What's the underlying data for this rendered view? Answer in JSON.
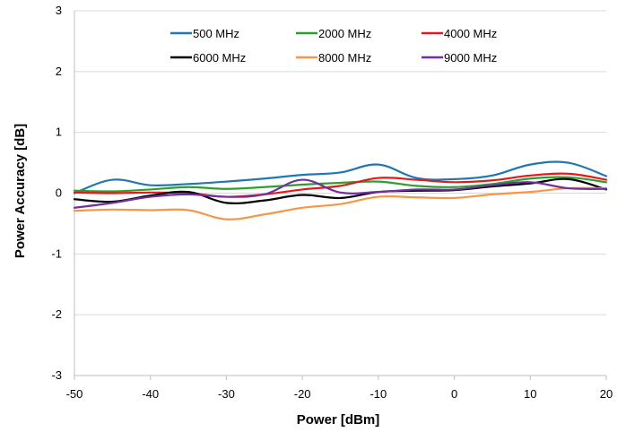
{
  "chart_data": {
    "type": "line",
    "title": "",
    "xlabel": "Power [dBm]",
    "ylabel": "Power Accuracy [dB]",
    "xlim": [
      -50,
      20
    ],
    "ylim": [
      -3,
      3
    ],
    "x_ticks": [
      "-50",
      "-40",
      "-30",
      "-20",
      "-10",
      "0",
      "10",
      "20"
    ],
    "y_ticks": [
      "-3",
      "-2",
      "-1",
      "0",
      "1",
      "2",
      "3"
    ],
    "grid": "horizontal",
    "legend_position": "top",
    "series": [
      {
        "name": "500 MHz",
        "color": "#1f77b4",
        "points": [
          [
            -50,
            0.0
          ],
          [
            -45,
            0.22
          ],
          [
            -40,
            0.13
          ],
          [
            -35,
            0.15
          ],
          [
            -30,
            0.19
          ],
          [
            -25,
            0.24
          ],
          [
            -20,
            0.3
          ],
          [
            -15,
            0.34
          ],
          [
            -10,
            0.47
          ],
          [
            -5,
            0.25
          ],
          [
            0,
            0.23
          ],
          [
            5,
            0.29
          ],
          [
            10,
            0.47
          ],
          [
            15,
            0.5
          ],
          [
            20,
            0.28
          ]
        ]
      },
      {
        "name": "2000 MHz",
        "color": "#2ca02c",
        "points": [
          [
            -50,
            0.04
          ],
          [
            -45,
            0.03
          ],
          [
            -40,
            0.06
          ],
          [
            -35,
            0.1
          ],
          [
            -30,
            0.07
          ],
          [
            -25,
            0.1
          ],
          [
            -20,
            0.14
          ],
          [
            -15,
            0.17
          ],
          [
            -10,
            0.19
          ],
          [
            -5,
            0.12
          ],
          [
            0,
            0.1
          ],
          [
            5,
            0.15
          ],
          [
            10,
            0.24
          ],
          [
            15,
            0.26
          ],
          [
            20,
            0.18
          ]
        ]
      },
      {
        "name": "4000 MHz",
        "color": "#e31a1c",
        "points": [
          [
            -50,
            0.01
          ],
          [
            -45,
            0.0
          ],
          [
            -40,
            0.01
          ],
          [
            -35,
            0.0
          ],
          [
            -30,
            -0.06
          ],
          [
            -25,
            -0.02
          ],
          [
            -20,
            0.06
          ],
          [
            -15,
            0.12
          ],
          [
            -10,
            0.25
          ],
          [
            -5,
            0.22
          ],
          [
            0,
            0.18
          ],
          [
            5,
            0.21
          ],
          [
            10,
            0.29
          ],
          [
            15,
            0.32
          ],
          [
            20,
            0.22
          ]
        ]
      },
      {
        "name": "6000 MHz",
        "color": "#000000",
        "points": [
          [
            -50,
            -0.1
          ],
          [
            -45,
            -0.14
          ],
          [
            -40,
            -0.04
          ],
          [
            -35,
            0.02
          ],
          [
            -30,
            -0.16
          ],
          [
            -25,
            -0.12
          ],
          [
            -20,
            -0.03
          ],
          [
            -15,
            -0.08
          ],
          [
            -10,
            0.02
          ],
          [
            -5,
            0.04
          ],
          [
            0,
            0.05
          ],
          [
            5,
            0.11
          ],
          [
            10,
            0.16
          ],
          [
            15,
            0.23
          ],
          [
            20,
            0.06
          ]
        ]
      },
      {
        "name": "8000 MHz",
        "color": "#f79646",
        "points": [
          [
            -50,
            -0.29
          ],
          [
            -45,
            -0.27
          ],
          [
            -40,
            -0.28
          ],
          [
            -35,
            -0.28
          ],
          [
            -30,
            -0.43
          ],
          [
            -25,
            -0.35
          ],
          [
            -20,
            -0.24
          ],
          [
            -15,
            -0.18
          ],
          [
            -10,
            -0.06
          ],
          [
            -5,
            -0.07
          ],
          [
            0,
            -0.08
          ],
          [
            5,
            -0.02
          ],
          [
            10,
            0.02
          ],
          [
            15,
            0.08
          ],
          [
            20,
            0.08
          ]
        ]
      },
      {
        "name": "9000 MHz",
        "color": "#7030a0",
        "points": [
          [
            -50,
            -0.24
          ],
          [
            -45,
            -0.16
          ],
          [
            -40,
            -0.06
          ],
          [
            -35,
            -0.02
          ],
          [
            -30,
            -0.06
          ],
          [
            -25,
            -0.02
          ],
          [
            -20,
            0.22
          ],
          [
            -15,
            0.01
          ],
          [
            -10,
            0.02
          ],
          [
            -5,
            0.06
          ],
          [
            0,
            0.06
          ],
          [
            5,
            0.13
          ],
          [
            10,
            0.18
          ],
          [
            15,
            0.08
          ],
          [
            20,
            0.07
          ]
        ]
      }
    ]
  }
}
